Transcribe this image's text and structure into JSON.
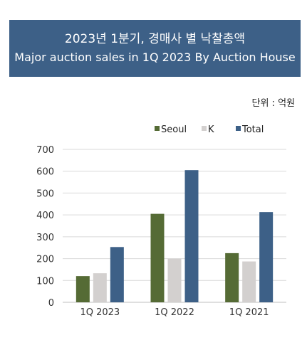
{
  "header": {
    "title_ko": "2023년 1분기, 경매사 별 낙찰총액",
    "title_en": "Major auction sales in 1Q 2023 By Auction House"
  },
  "unit_label": "단위 : 억원",
  "colors": {
    "banner": "#3d6087",
    "Seoul": "#556b35",
    "K": "#d3d0cf",
    "Total": "#3d6087",
    "grid": "#d9d9d9"
  },
  "chart_data": {
    "type": "bar",
    "categories": [
      "1Q 2023",
      "1Q 2022",
      "1Q 2021"
    ],
    "series": [
      {
        "name": "Seoul",
        "values": [
          120,
          405,
          225
        ]
      },
      {
        "name": "K",
        "values": [
          133,
          200,
          187
        ]
      },
      {
        "name": "Total",
        "values": [
          253,
          605,
          413
        ]
      }
    ],
    "ylim": [
      0,
      700
    ],
    "yticks": [
      0,
      100,
      200,
      300,
      400,
      500,
      600,
      700
    ],
    "grid": true,
    "legend_position": "top-center"
  }
}
